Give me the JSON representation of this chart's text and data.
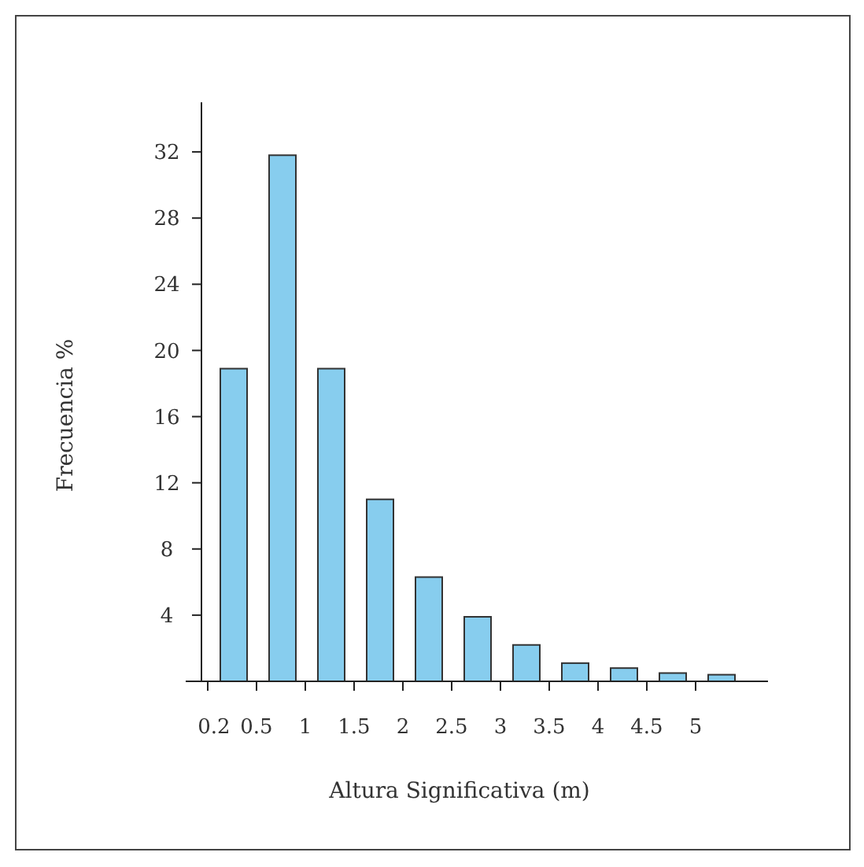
{
  "chart_data": {
    "type": "bar",
    "xlabel": "Altura Significativa (m)",
    "ylabel": "Frecuencia %",
    "categories": [
      "0.2",
      "0.5",
      "1",
      "1.5",
      "2",
      "2.5",
      "3",
      "3.5",
      "4",
      "4.5",
      "5"
    ],
    "values": [
      18.9,
      31.8,
      18.9,
      11.0,
      6.3,
      3.9,
      2.2,
      1.1,
      0.8,
      0.5,
      0.4
    ],
    "color": "#87cdee",
    "ylim": [
      0,
      35
    ],
    "yticks": [
      4,
      8,
      12,
      16,
      20,
      24,
      28,
      32
    ]
  }
}
